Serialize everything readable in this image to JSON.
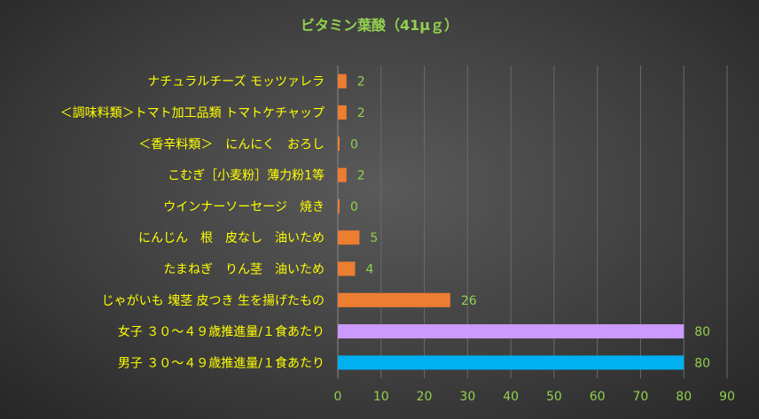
{
  "chart_data": {
    "type": "bar",
    "orientation": "horizontal",
    "title": "ビタミン葉酸（41μｇ）",
    "categories": [
      "ナチュラルチーズ モッツァレラ",
      "＜調味料類＞トマト加工品類 トマトケチャップ",
      "＜香辛料類＞　にんにく　おろし",
      "こむぎ［小麦粉］薄力粉1等",
      "ウインナーソーセージ　焼き",
      "にんじん　根　皮なし　油いため",
      "たまねぎ　りん茎　油いため",
      "じゃがいも 塊茎 皮つき 生を揚げたもの",
      "女子 ３０～４９歳推進量/１食あたり",
      "男子 ３０～４９歳推進量/１食あたり"
    ],
    "values": [
      2,
      2,
      0,
      2,
      0,
      5,
      4,
      26,
      80,
      80
    ],
    "bar_colors": [
      "#ed7d31",
      "#ed7d31",
      "#ed7d31",
      "#ed7d31",
      "#ed7d31",
      "#ed7d31",
      "#ed7d31",
      "#ed7d31",
      "#cc99ff",
      "#00b0f0"
    ],
    "value_labels": [
      "2",
      "2",
      "0",
      "2",
      "0",
      "5",
      "4",
      "26",
      "80",
      "80"
    ],
    "xlim": [
      0,
      90
    ],
    "xticks": [
      0,
      10,
      20,
      30,
      40,
      50,
      60,
      70,
      80,
      90
    ],
    "xlabel": "",
    "ylabel": "",
    "grid": true,
    "legend": "none"
  }
}
